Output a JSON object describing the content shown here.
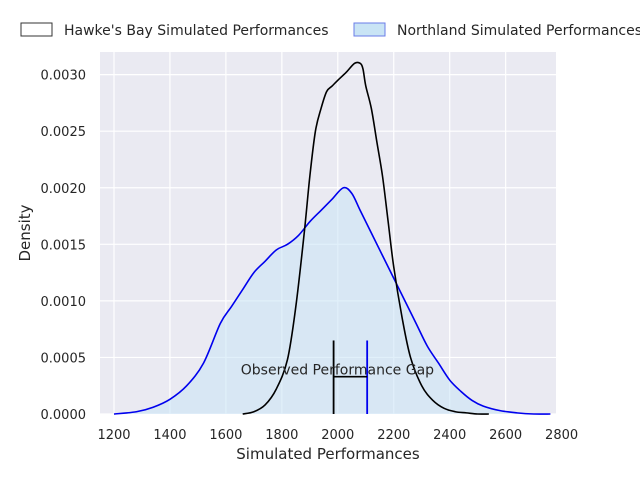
{
  "chart_data": {
    "type": "area",
    "title": "",
    "xlabel": "Simulated Performances",
    "ylabel": "Density",
    "xlim": [
      1150,
      2780
    ],
    "ylim": [
      0,
      0.0032
    ],
    "xticks": [
      1200,
      1400,
      1600,
      1800,
      2000,
      2200,
      2400,
      2600,
      2800
    ],
    "yticks": [
      0.0,
      0.0005,
      0.001,
      0.0015,
      0.002,
      0.0025,
      0.003
    ],
    "ytick_labels": [
      "0.0000",
      "0.0005",
      "0.0010",
      "0.0015",
      "0.0020",
      "0.0025",
      "0.0030"
    ],
    "grid": true,
    "legend_position": "top",
    "series": [
      {
        "name": "Hawke's Bay Simulated Performances",
        "color": "#000000",
        "fill": "none",
        "x": [
          1660,
          1700,
          1740,
          1780,
          1820,
          1850,
          1880,
          1900,
          1920,
          1940,
          1960,
          1980,
          2000,
          2030,
          2060,
          2080,
          2090,
          2100,
          2120,
          2140,
          2160,
          2180,
          2200,
          2230,
          2260,
          2300,
          2340,
          2380,
          2420,
          2460,
          2500,
          2540
        ],
        "values": [
          0.0,
          2e-05,
          8e-05,
          0.00022,
          0.00048,
          0.00095,
          0.0016,
          0.0021,
          0.0025,
          0.0027,
          0.00285,
          0.0029,
          0.00295,
          0.00302,
          0.0031,
          0.0031,
          0.00305,
          0.0029,
          0.0027,
          0.0024,
          0.0021,
          0.0017,
          0.0013,
          0.00085,
          0.0005,
          0.00025,
          0.00012,
          5e-05,
          2e-05,
          1e-05,
          0.0,
          0.0
        ]
      },
      {
        "name": "Northland Simulated Performances",
        "color": "#0000ee",
        "fill": "#c9e4f5",
        "x": [
          1200,
          1280,
          1340,
          1400,
          1460,
          1520,
          1580,
          1620,
          1660,
          1700,
          1740,
          1780,
          1820,
          1860,
          1900,
          1940,
          1980,
          2020,
          2050,
          2080,
          2120,
          2160,
          2200,
          2240,
          2280,
          2320,
          2360,
          2400,
          2440,
          2480,
          2520,
          2580,
          2640,
          2700,
          2760
        ],
        "values": [
          0.0,
          2e-05,
          6e-05,
          0.00013,
          0.00025,
          0.00045,
          0.0008,
          0.00095,
          0.0011,
          0.00125,
          0.00135,
          0.00145,
          0.0015,
          0.00158,
          0.0017,
          0.0018,
          0.0019,
          0.002,
          0.00195,
          0.0018,
          0.0016,
          0.0014,
          0.0012,
          0.001,
          0.0008,
          0.0006,
          0.00045,
          0.0003,
          0.0002,
          0.00012,
          7e-05,
          3e-05,
          1e-05,
          0.0,
          0.0
        ]
      }
    ],
    "annotations": [
      {
        "text": "Observed Performance Gap",
        "x_left": 1985,
        "x_right": 2105,
        "marker_top": 0.00065,
        "bar_y": 0.00033,
        "left_color": "#000000",
        "right_color": "#0000ee"
      }
    ]
  }
}
